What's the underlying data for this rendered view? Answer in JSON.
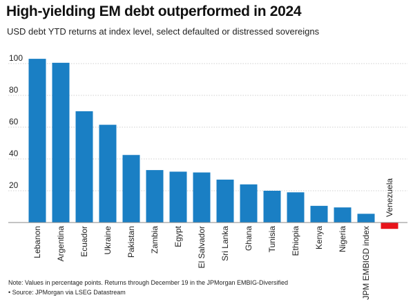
{
  "header": {
    "title": "High-yielding EM debt outperformed in 2024",
    "subtitle": "USD debt YTD returns at index level, select defaulted or distressed sovereigns"
  },
  "footer": {
    "note": "Note: Values in percentage points. Returns through December 19 in the JPMorgan EMBIG-Diversified",
    "source": "• Source: JPMorgan via LSEG Datastream"
  },
  "chart_data": {
    "type": "bar",
    "title": "High-yielding EM debt outperformed in 2024",
    "subtitle": "USD debt YTD returns at index level, select defaulted or distressed sovereigns",
    "xlabel": "",
    "ylabel": "",
    "ylim": [
      -4,
      102
    ],
    "yticks": [
      20,
      40,
      60,
      80,
      100
    ],
    "grid": true,
    "legend": "none",
    "categories": [
      "Lebanon",
      "Argentina",
      "Ecuador",
      "Ukraine",
      "Pakistan",
      "Zambia",
      "Egypt",
      "El Salvador",
      "Sri Lanka",
      "Ghana",
      "Tunisia",
      "Ethiopia",
      "Kenya",
      "Nigeria",
      "JPM EMBIGD index",
      "Venezuela"
    ],
    "values": [
      103,
      100.5,
      70,
      61.5,
      42.5,
      33,
      32,
      31.5,
      27,
      24,
      20,
      19,
      10.5,
      9.5,
      5.5,
      -4
    ],
    "colors": {
      "positive": "#1a7fc4",
      "negative": "#e8141b",
      "grid": "#cfcfcf",
      "axis": "#888888"
    }
  }
}
